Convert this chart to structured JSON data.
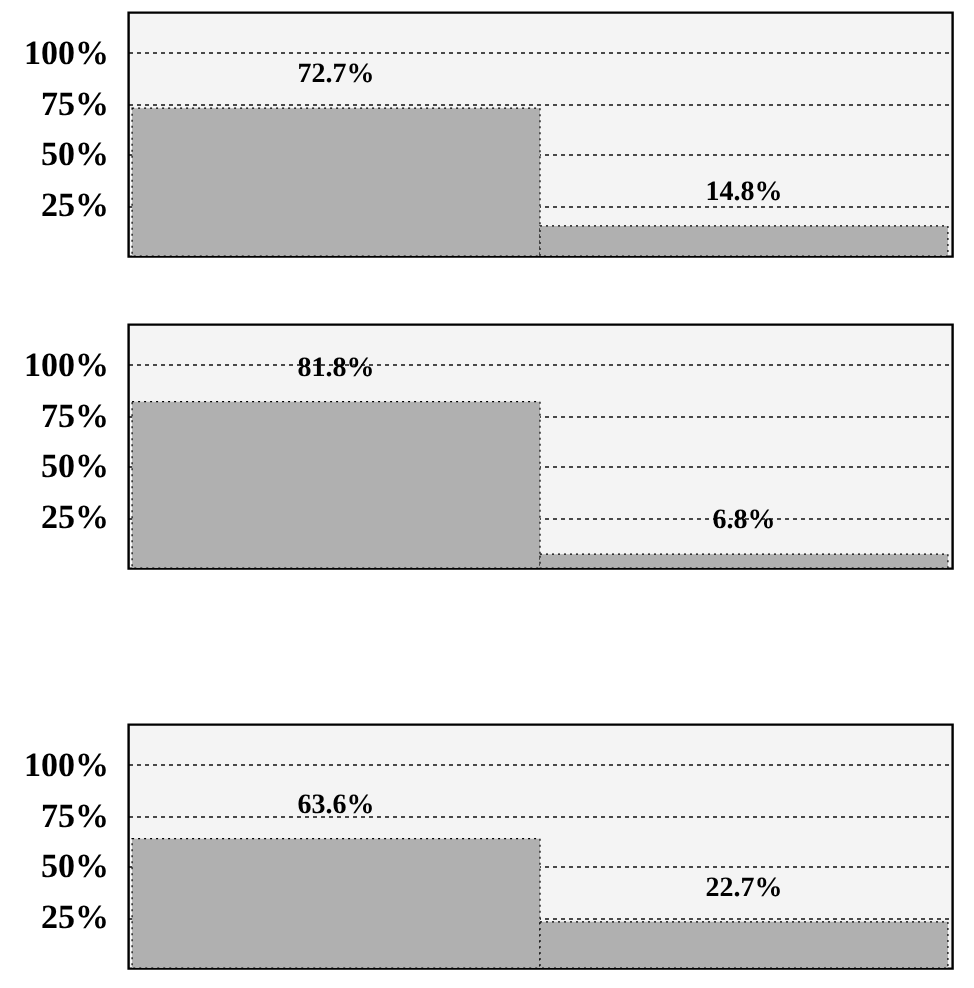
{
  "chart_data": [
    {
      "type": "bar",
      "categories": [
        null,
        null
      ],
      "values": [
        72.7,
        14.8
      ],
      "value_labels": [
        "72.7%",
        "14.8%"
      ],
      "color": "#b0b0b0",
      "ylim": [
        0,
        120
      ],
      "yticks": [
        {
          "value": 25,
          "label": "25%"
        },
        {
          "value": 50,
          "label": "50%"
        },
        {
          "value": 75,
          "label": "75%"
        },
        {
          "value": 100,
          "label": "100%"
        }
      ],
      "grid": "y",
      "tick_labels": "y"
    },
    {
      "type": "bar",
      "categories": [
        null,
        null
      ],
      "values": [
        81.8,
        6.8
      ],
      "value_labels": [
        "81.8%",
        "6.8%"
      ],
      "color": "#b0b0b0",
      "ylim": [
        0,
        120
      ],
      "yticks": [
        {
          "value": 25,
          "label": "25%"
        },
        {
          "value": 50,
          "label": "50%"
        },
        {
          "value": 75,
          "label": "75%"
        },
        {
          "value": 100,
          "label": "100%"
        }
      ],
      "grid": "y",
      "tick_labels": "y"
    },
    {
      "type": "bar",
      "categories": [
        null,
        null
      ],
      "values": [
        63.6,
        22.7
      ],
      "value_labels": [
        "63.6%",
        "22.7%"
      ],
      "color": "#b0b0b0",
      "ylim": [
        0,
        120
      ],
      "yticks": [
        {
          "value": 25,
          "label": "25%"
        },
        {
          "value": 50,
          "label": "50%"
        },
        {
          "value": 75,
          "label": "75%"
        },
        {
          "value": 100,
          "label": "100%"
        }
      ],
      "grid": "y",
      "tick_labels": "y"
    }
  ]
}
